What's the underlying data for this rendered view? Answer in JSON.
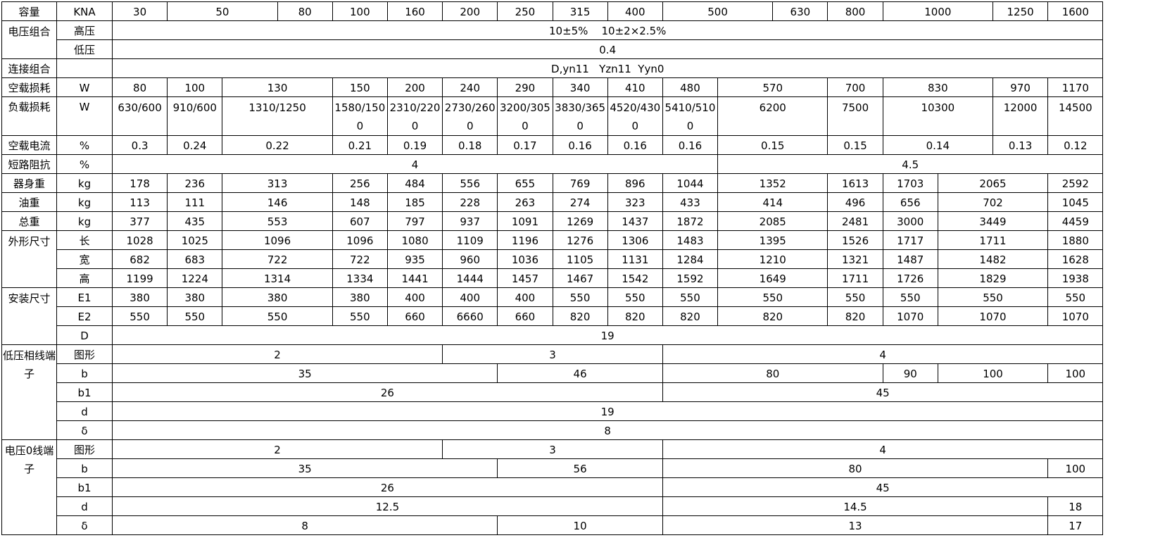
{
  "rows": [
    {
      "label": "容量",
      "unit": "KNA",
      "values": [
        "30",
        "50",
        "80",
        "100",
        "160",
        "200",
        "250",
        "315",
        "400",
        "500",
        "630",
        "800",
        "1000",
        "1250",
        "1600"
      ]
    },
    {
      "label": "电压组合",
      "unit": "高压",
      "values": [
        "10±5%    10±2×2.5%"
      ]
    },
    {
      "label": "",
      "unit": "低压",
      "values": [
        "0.4"
      ]
    },
    {
      "label": "连接组合",
      "unit": "",
      "values": [
        "D,yn11   Yzn11  Yyn0"
      ]
    },
    {
      "label": "空载损耗",
      "unit": "W",
      "values": [
        "80",
        "100",
        "130",
        "150",
        "200",
        "240",
        "290",
        "340",
        "410",
        "480",
        "570",
        "700",
        "830",
        "970",
        "1170"
      ]
    },
    {
      "label": "负载损耗",
      "unit": "W",
      "values": [
        "630/600",
        "910/600",
        "1310/1250",
        "1580/1500",
        "2310/2200",
        "2730/2600",
        "3200/3050",
        "3830/3650",
        "4520/4300",
        "5410/5100",
        "6200",
        "7500",
        "10300",
        "12000",
        "14500"
      ]
    },
    {
      "label": "空载电流",
      "unit": "%",
      "values": [
        "0.3",
        "0.24",
        "0.22",
        "0.21",
        "0.19",
        "0.18",
        "0.17",
        "0.16",
        "0.16",
        "0.16",
        "0.15",
        "0.15",
        "0.14",
        "0.13",
        "0.12"
      ]
    },
    {
      "label": "短路阻抗",
      "unit": "%",
      "values": [
        "4",
        "4.5"
      ]
    },
    {
      "label": "器身重",
      "unit": "kg",
      "values": [
        "178",
        "236",
        "313",
        "256",
        "484",
        "556",
        "655",
        "769",
        "896",
        "1044",
        "1352",
        "1613",
        "1703",
        "2065",
        "2592"
      ]
    },
    {
      "label": "油重",
      "unit": "kg",
      "values": [
        "113",
        "111",
        "146",
        "148",
        "185",
        "228",
        "263",
        "274",
        "323",
        "433",
        "414",
        "496",
        "656",
        "702",
        "1045"
      ]
    },
    {
      "label": "总重",
      "unit": "kg",
      "values": [
        "377",
        "435",
        "553",
        "607",
        "797",
        "937",
        "1091",
        "1269",
        "1437",
        "1872",
        "2085",
        "2481",
        "3000",
        "3449",
        "4459"
      ]
    },
    {
      "label": "外形尺寸",
      "unit": "长",
      "values": [
        "1028",
        "1025",
        "1096",
        "1096",
        "1080",
        "1109",
        "1196",
        "1276",
        "1306",
        "1483",
        "1395",
        "1526",
        "1717",
        "1711",
        "1880"
      ]
    },
    {
      "label": "",
      "unit": "宽",
      "values": [
        "682",
        "683",
        "722",
        "722",
        "935",
        "960",
        "1036",
        "1105",
        "1131",
        "1284",
        "1210",
        "1321",
        "1487",
        "1482",
        "1628"
      ]
    },
    {
      "label": "",
      "unit": "高",
      "values": [
        "1199",
        "1224",
        "1314",
        "1334",
        "1441",
        "1444",
        "1457",
        "1467",
        "1542",
        "1592",
        "1649",
        "1711",
        "1726",
        "1829",
        "1938"
      ]
    },
    {
      "label": "安装尺寸",
      "unit": "E1",
      "values": [
        "380",
        "380",
        "380",
        "380",
        "400",
        "400",
        "400",
        "550",
        "550",
        "550",
        "550",
        "550",
        "550",
        "550",
        "550"
      ]
    },
    {
      "label": "",
      "unit": "E2",
      "values": [
        "550",
        "550",
        "550",
        "550",
        "660",
        "6660",
        "660",
        "820",
        "820",
        "820",
        "820",
        "820",
        "1070",
        "1070",
        "1070"
      ]
    },
    {
      "label": "",
      "unit": "D",
      "values": [
        "19"
      ]
    },
    {
      "label": "低压相线端子",
      "unit": "图形",
      "values": [
        "2",
        "3",
        "4"
      ]
    },
    {
      "label": "",
      "unit": "b",
      "values": [
        "35",
        "46",
        "80",
        "90",
        "100",
        "100"
      ]
    },
    {
      "label": "",
      "unit": "b1",
      "values": [
        "26",
        "45"
      ]
    },
    {
      "label": "",
      "unit": "d",
      "values": [
        "19"
      ]
    },
    {
      "label": "",
      "unit": "δ",
      "values": [
        "8"
      ]
    },
    {
      "label": "电压0线端子",
      "unit": "图形",
      "values": [
        "2",
        "3",
        "4"
      ]
    },
    {
      "label": "",
      "unit": "b",
      "values": [
        "35",
        "56",
        "80",
        "100"
      ]
    },
    {
      "label": "",
      "unit": "b1",
      "values": [
        "26",
        "45"
      ]
    },
    {
      "label": "",
      "unit": "d",
      "values": [
        "12.5",
        "14.5",
        "18"
      ]
    },
    {
      "label": "",
      "unit": "δ",
      "values": [
        "8",
        "10",
        "13",
        "17"
      ]
    }
  ]
}
